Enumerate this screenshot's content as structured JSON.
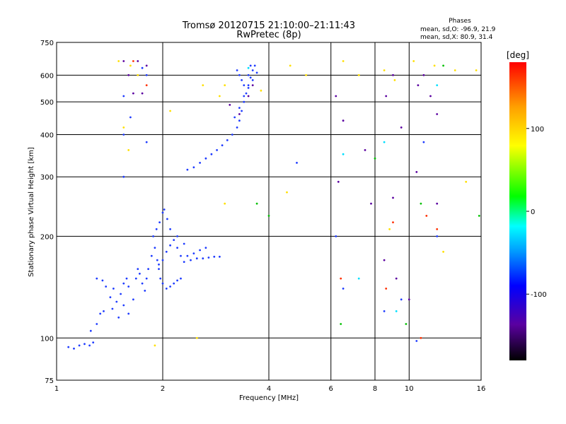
{
  "header": {
    "title_line1": "Tromsø 20120715 21:10:00–21:11:43",
    "title_line2": "RwPretec (8p)"
  },
  "phases_box": {
    "title": "Phases",
    "line_o": "mean, sd,O: -96.9, 21.9",
    "line_x": "mean, sd,X: 80.9, 31.4"
  },
  "colorbar": {
    "label": "[deg]",
    "ticks": [
      {
        "value": 100,
        "label": "100"
      },
      {
        "value": 0,
        "label": "0"
      },
      {
        "value": -100,
        "label": "-100"
      }
    ],
    "range": [
      -180,
      180
    ],
    "colors": [
      "#000000",
      "#5a00a0",
      "#0000ff",
      "#00a0ff",
      "#00ffff",
      "#00ff00",
      "#ffff00",
      "#ffa000",
      "#ff0000"
    ]
  },
  "chart_data": {
    "type": "scatter",
    "xlabel": "Frequency [MHz]",
    "ylabel": "Stationary phase Virtual Height [km]",
    "x_scale": "log",
    "y_scale": "log",
    "xlim": [
      1,
      16
    ],
    "ylim": [
      75,
      750
    ],
    "x_ticks": [
      {
        "value": 1,
        "label": "1"
      },
      {
        "value": 2,
        "label": "2"
      },
      {
        "value": 4,
        "label": "4"
      },
      {
        "value": 6,
        "label": "6"
      },
      {
        "value": 8,
        "label": "8"
      },
      {
        "value": 10,
        "label": "10"
      },
      {
        "value": 16,
        "label": "16"
      }
    ],
    "y_ticks": [
      {
        "value": 75,
        "label": "75"
      },
      {
        "value": 100,
        "label": "100"
      },
      {
        "value": 200,
        "label": "200"
      },
      {
        "value": 300,
        "label": "300"
      },
      {
        "value": 400,
        "label": "400"
      },
      {
        "value": 500,
        "label": "500"
      },
      {
        "value": 600,
        "label": "600"
      },
      {
        "value": 750,
        "label": "750"
      }
    ],
    "grid": true,
    "series": [
      {
        "color": "#1f3cff",
        "points": [
          [
            1.08,
            94
          ],
          [
            1.12,
            93
          ],
          [
            1.16,
            95
          ],
          [
            1.2,
            96
          ],
          [
            1.24,
            95
          ],
          [
            1.27,
            97
          ],
          [
            1.25,
            105
          ],
          [
            1.3,
            110
          ],
          [
            1.33,
            118
          ],
          [
            1.36,
            120
          ],
          [
            1.3,
            150
          ],
          [
            1.35,
            148
          ],
          [
            1.38,
            142
          ],
          [
            1.42,
            132
          ],
          [
            1.45,
            140
          ],
          [
            1.48,
            128
          ],
          [
            1.52,
            135
          ],
          [
            1.55,
            145
          ],
          [
            1.58,
            150
          ],
          [
            1.6,
            142
          ],
          [
            1.44,
            122
          ],
          [
            1.5,
            115
          ],
          [
            1.55,
            125
          ],
          [
            1.6,
            118
          ],
          [
            1.65,
            130
          ],
          [
            1.68,
            150
          ],
          [
            1.7,
            160
          ],
          [
            1.72,
            155
          ],
          [
            1.75,
            145
          ],
          [
            1.78,
            138
          ],
          [
            1.8,
            150
          ],
          [
            1.82,
            160
          ],
          [
            1.86,
            175
          ],
          [
            1.9,
            185
          ],
          [
            1.93,
            170
          ],
          [
            1.95,
            160
          ],
          [
            1.97,
            150
          ],
          [
            2.0,
            145
          ],
          [
            2.05,
            140
          ],
          [
            2.1,
            142
          ],
          [
            2.15,
            145
          ],
          [
            2.2,
            148
          ],
          [
            2.25,
            150
          ],
          [
            1.88,
            200
          ],
          [
            1.92,
            210
          ],
          [
            1.96,
            220
          ],
          [
            2.0,
            235
          ],
          [
            2.02,
            240
          ],
          [
            2.06,
            225
          ],
          [
            2.1,
            210
          ],
          [
            2.15,
            195
          ],
          [
            2.2,
            185
          ],
          [
            2.25,
            175
          ],
          [
            2.3,
            168
          ],
          [
            2.4,
            170
          ],
          [
            2.5,
            172
          ],
          [
            2.6,
            172
          ],
          [
            2.7,
            173
          ],
          [
            2.8,
            174
          ],
          [
            2.9,
            174
          ],
          [
            1.95,
            165
          ],
          [
            2.0,
            170
          ],
          [
            2.05,
            180
          ],
          [
            2.1,
            188
          ],
          [
            2.2,
            200
          ],
          [
            2.3,
            190
          ],
          [
            2.35,
            175
          ],
          [
            2.45,
            178
          ],
          [
            2.55,
            182
          ],
          [
            2.65,
            185
          ],
          [
            2.35,
            315
          ],
          [
            2.45,
            320
          ],
          [
            2.55,
            330
          ],
          [
            2.65,
            340
          ],
          [
            2.75,
            350
          ],
          [
            2.85,
            360
          ],
          [
            2.95,
            372
          ],
          [
            3.05,
            385
          ],
          [
            3.15,
            400
          ],
          [
            3.25,
            420
          ],
          [
            3.3,
            440
          ],
          [
            3.35,
            470
          ],
          [
            3.4,
            500
          ],
          [
            3.45,
            530
          ],
          [
            3.5,
            560
          ],
          [
            3.55,
            590
          ],
          [
            3.6,
            620
          ],
          [
            3.65,
            640
          ],
          [
            3.2,
            450
          ],
          [
            3.3,
            480
          ],
          [
            3.4,
            520
          ],
          [
            3.5,
            550
          ],
          [
            3.6,
            580
          ],
          [
            3.7,
            610
          ],
          [
            3.25,
            620
          ],
          [
            3.3,
            600
          ],
          [
            3.35,
            580
          ],
          [
            3.4,
            560
          ],
          [
            3.5,
            600
          ],
          [
            3.55,
            640
          ],
          [
            1.55,
            300
          ],
          [
            1.55,
            400
          ],
          [
            1.55,
            520
          ],
          [
            1.62,
            450
          ],
          [
            1.75,
            630
          ],
          [
            1.8,
            600
          ],
          [
            1.8,
            380
          ],
          [
            4.8,
            330
          ],
          [
            6.2,
            200
          ],
          [
            6.5,
            140
          ],
          [
            8.5,
            120
          ],
          [
            9.5,
            130
          ],
          [
            10.5,
            98
          ],
          [
            11.0,
            380
          ],
          [
            12.0,
            200
          ]
        ]
      },
      {
        "color": "#5a00a0",
        "points": [
          [
            1.55,
            660
          ],
          [
            1.6,
            600
          ],
          [
            1.65,
            530
          ],
          [
            1.7,
            660
          ],
          [
            1.75,
            530
          ],
          [
            1.8,
            640
          ],
          [
            3.1,
            490
          ],
          [
            3.3,
            460
          ],
          [
            3.5,
            520
          ],
          [
            3.6,
            560
          ],
          [
            6.2,
            520
          ],
          [
            6.5,
            440
          ],
          [
            7.5,
            360
          ],
          [
            8.6,
            520
          ],
          [
            9.0,
            600
          ],
          [
            9.5,
            420
          ],
          [
            10.6,
            560
          ],
          [
            11.0,
            600
          ],
          [
            11.5,
            520
          ],
          [
            12.0,
            460
          ],
          [
            6.3,
            290
          ],
          [
            7.8,
            250
          ],
          [
            9.0,
            260
          ],
          [
            10.5,
            310
          ],
          [
            12.0,
            250
          ],
          [
            8.5,
            170
          ],
          [
            9.2,
            150
          ],
          [
            10.0,
            130
          ]
        ]
      },
      {
        "color": "#ffe000",
        "points": [
          [
            1.5,
            660
          ],
          [
            1.62,
            640
          ],
          [
            1.7,
            600
          ],
          [
            2.6,
            560
          ],
          [
            2.9,
            520
          ],
          [
            3.0,
            560
          ],
          [
            3.8,
            540
          ],
          [
            4.6,
            640
          ],
          [
            5.1,
            600
          ],
          [
            6.5,
            660
          ],
          [
            7.2,
            600
          ],
          [
            8.5,
            620
          ],
          [
            9.1,
            580
          ],
          [
            10.3,
            660
          ],
          [
            11.8,
            640
          ],
          [
            13.5,
            620
          ],
          [
            15.5,
            620
          ],
          [
            3.0,
            250
          ],
          [
            4.5,
            270
          ],
          [
            8.8,
            210
          ],
          [
            1.55,
            420
          ],
          [
            1.6,
            360
          ],
          [
            2.1,
            470
          ],
          [
            1.9,
            95
          ],
          [
            2.5,
            100
          ],
          [
            12.5,
            180
          ],
          [
            14.5,
            290
          ]
        ]
      },
      {
        "color": "#ff3000",
        "points": [
          [
            1.65,
            660
          ],
          [
            1.8,
            560
          ],
          [
            6.4,
            150
          ],
          [
            8.6,
            140
          ],
          [
            9.0,
            220
          ],
          [
            10.8,
            100
          ],
          [
            11.2,
            230
          ],
          [
            12.0,
            210
          ]
        ]
      },
      {
        "color": "#00c000",
        "points": [
          [
            3.7,
            250
          ],
          [
            6.4,
            110
          ],
          [
            8.0,
            340
          ],
          [
            9.8,
            110
          ],
          [
            10.8,
            250
          ],
          [
            12.5,
            640
          ],
          [
            15.8,
            230
          ],
          [
            4.0,
            230
          ]
        ]
      },
      {
        "color": "#00e0ff",
        "points": [
          [
            3.5,
            630
          ],
          [
            6.5,
            350
          ],
          [
            7.2,
            150
          ],
          [
            8.5,
            380
          ],
          [
            9.2,
            120
          ],
          [
            12.0,
            560
          ]
        ]
      }
    ]
  }
}
